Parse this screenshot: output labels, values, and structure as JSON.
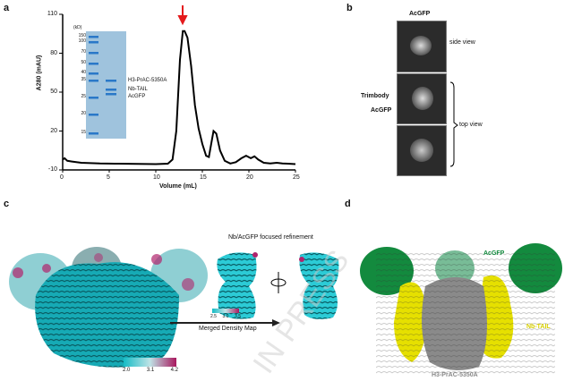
{
  "panels": {
    "a": "a",
    "b": "b",
    "c": "c",
    "d": "d"
  },
  "chart_data": {
    "type": "line",
    "title": "",
    "xlabel": "Volume (mL)",
    "ylabel": "A280 (mAU)",
    "xlim": [
      0,
      25
    ],
    "ylim": [
      -10,
      110
    ],
    "xticks": [
      "0",
      "5",
      "10",
      "15",
      "20",
      "25"
    ],
    "yticks": [
      "110",
      "80",
      "50",
      "20",
      "-10"
    ],
    "x": [
      0,
      0.2,
      0.5,
      1,
      2,
      4,
      6,
      8,
      10,
      11.3,
      11.8,
      12.2,
      12.6,
      12.9,
      13.1,
      13.4,
      13.8,
      14.2,
      14.6,
      15.0,
      15.4,
      15.7,
      16.0,
      16.2,
      16.5,
      16.9,
      17.4,
      18.0,
      18.6,
      19.2,
      19.7,
      20.2,
      20.6,
      21.0,
      21.6,
      22.3,
      23.0,
      23.6,
      24.2,
      25
    ],
    "y": [
      -2,
      -1,
      -3,
      -3.5,
      -4.5,
      -5,
      -5.2,
      -5.4,
      -5.5,
      -5.2,
      -2,
      20,
      75,
      97,
      97,
      92,
      70,
      40,
      22,
      10,
      1,
      0,
      12,
      20,
      18,
      5,
      -3,
      -5,
      -4,
      -1,
      1,
      -1,
      0.5,
      -2,
      -4.5,
      -5,
      -4.5,
      -5,
      -5.2,
      -5.5
    ],
    "annotation": "red arrow at peak (~13 mL)"
  },
  "gel": {
    "unit": "(kD)",
    "markers": [
      "150",
      "100",
      "70",
      "50",
      "40",
      "35",
      "25",
      "20",
      "15"
    ],
    "bands": [
      "H3-PrAC-5350A",
      "Nb-TAIL",
      "AcGFP"
    ]
  },
  "panel_b": {
    "title": "AcGFP",
    "side_view": "side view",
    "top_view": "top view",
    "arrow1": "Trimbody",
    "arrow2": "AcGFP"
  },
  "panel_c": {
    "colorbar_labels": [
      "2.0",
      "3.1",
      "4.2"
    ],
    "focused_title": "Nb/AcGFP focused refinement",
    "focused_colorbar": [
      "2.5",
      "3.0",
      "3.5"
    ],
    "arrow_label": "Merged Density Map"
  },
  "panel_d": {
    "labels": {
      "acgfp": "AcGFP",
      "nb": "Nb-TAIL",
      "h3": "H3-PrAC-5350A"
    }
  },
  "watermark": "IN PRESS",
  "colors": {
    "teal": "#1fb7c2",
    "magenta": "#b0246c",
    "green": "#138a3e",
    "yellow": "#e6e000",
    "grey": "#8a8a8a",
    "red": "#e41a1c"
  }
}
